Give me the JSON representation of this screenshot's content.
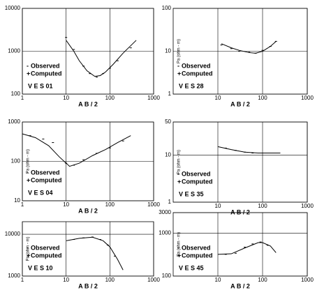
{
  "chart_data": [
    {
      "type": "line",
      "label": "V E S 01",
      "xlabel": "A B / 2",
      "log_x": true,
      "log_y": true,
      "grid": true,
      "legend": "lower left",
      "xlim": [
        1,
        1000
      ],
      "ylim": [
        100,
        10000
      ],
      "xticks": [
        1,
        10,
        100,
        1000
      ],
      "yticks": [
        100,
        1000,
        10000
      ],
      "series": [
        {
          "name": "Observed",
          "color": "#000000",
          "x": [
            10,
            15,
            25,
            35,
            50,
            70,
            100,
            150,
            300
          ],
          "values": [
            2100,
            1100,
            450,
            300,
            250,
            300,
            400,
            600,
            1200
          ]
        },
        {
          "name": "Computed",
          "color": "#000000",
          "x": [
            10,
            15,
            20,
            30,
            45,
            60,
            80,
            120,
            200,
            400
          ],
          "values": [
            1800,
            1000,
            600,
            350,
            260,
            270,
            330,
            500,
            900,
            1800
          ]
        }
      ]
    },
    {
      "type": "line",
      "label": "V E S 28",
      "xlabel": "A B / 2",
      "ylabel": "Pa (ohm - m)",
      "log_x": true,
      "log_y": true,
      "grid": true,
      "legend": "lower left",
      "xlim": [
        1,
        1000
      ],
      "ylim": [
        1,
        100
      ],
      "xticks": [
        10,
        100,
        1000
      ],
      "yticks": [
        1,
        10,
        100
      ],
      "series": [
        {
          "name": "Observed",
          "color": "#000000",
          "x": [
            12,
            20,
            30,
            50,
            70,
            100,
            150,
            200
          ],
          "values": [
            14,
            11.5,
            10,
            9.5,
            9,
            10.5,
            13,
            17
          ]
        },
        {
          "name": "Computed",
          "color": "#000000",
          "x": [
            12,
            20,
            30,
            50,
            70,
            100,
            150,
            200
          ],
          "values": [
            15,
            12,
            10.5,
            9.3,
            9,
            10,
            13,
            17
          ]
        }
      ]
    },
    {
      "type": "line",
      "label": "V E S 04",
      "xlabel": "A B / 2",
      "ylabel": "Pa (ohm - m)",
      "log_x": true,
      "log_y": true,
      "grid": true,
      "legend": "lower left",
      "xlim": [
        1,
        1000
      ],
      "ylim": [
        10,
        1000
      ],
      "xticks": [
        1,
        10,
        100,
        1000
      ],
      "yticks": [
        10,
        100,
        1000
      ],
      "series": [
        {
          "name": "Observed",
          "color": "#000000",
          "x": [
            1.5,
            3,
            5,
            10,
            15,
            25,
            50,
            100,
            200
          ],
          "values": [
            450,
            370,
            300,
            90,
            80,
            110,
            160,
            220,
            330
          ]
        },
        {
          "name": "Computed",
          "color": "#000000",
          "x": [
            1,
            2,
            4,
            7,
            12,
            20,
            40,
            80,
            150,
            300
          ],
          "values": [
            500,
            400,
            250,
            130,
            75,
            90,
            140,
            200,
            300,
            450
          ]
        }
      ]
    },
    {
      "type": "line",
      "label": "V E S 35",
      "xlabel": "A B / 2",
      "ylabel": "Pa (ohm - m)",
      "log_x": true,
      "log_y": true,
      "grid": true,
      "legend": "lower left",
      "xlim": [
        1,
        1000
      ],
      "ylim": [
        1,
        50
      ],
      "xticks": [
        10,
        100,
        1000
      ],
      "yticks": [
        1,
        10,
        50
      ],
      "series": [
        {
          "name": "Observed",
          "color": "#000000",
          "x": [
            15,
            25,
            40,
            60,
            90,
            130,
            200
          ],
          "values": [
            14,
            12.5,
            11.5,
            11,
            11,
            11,
            11
          ]
        },
        {
          "name": "Computed",
          "color": "#000000",
          "x": [
            10,
            20,
            40,
            80,
            150,
            250
          ],
          "values": [
            15,
            13,
            11.5,
            11,
            11,
            11
          ]
        }
      ]
    },
    {
      "type": "line",
      "label": "V E S 10",
      "xlabel": "A B / 2",
      "ylabel": "Pa (ohm - m)",
      "log_x": true,
      "log_y": true,
      "grid": true,
      "legend": "lower left",
      "xlim": [
        1,
        1000
      ],
      "ylim": [
        1000,
        20000
      ],
      "xticks": [
        1,
        10,
        100,
        1000
      ],
      "yticks": [
        1000,
        10000
      ],
      "series": [
        {
          "name": "Observed",
          "color": "#000000",
          "x": [
            15,
            25,
            40,
            60,
            90,
            130
          ],
          "values": [
            7500,
            8200,
            8600,
            7500,
            5500,
            3000
          ]
        },
        {
          "name": "Computed",
          "color": "#000000",
          "x": [
            10,
            20,
            40,
            70,
            100,
            150,
            200
          ],
          "values": [
            7000,
            8000,
            8500,
            7000,
            5000,
            2500,
            1400
          ]
        }
      ]
    },
    {
      "type": "line",
      "label": "V E S 45",
      "xlabel": "A B / 2",
      "ylabel": "Pa (ohm - m)",
      "log_x": true,
      "log_y": true,
      "grid": true,
      "legend": "lower left",
      "xlim": [
        1,
        1000
      ],
      "ylim": [
        100,
        3000
      ],
      "xticks": [
        10,
        100,
        1000
      ],
      "yticks": [
        100,
        1000,
        3000
      ],
      "series": [
        {
          "name": "Observed",
          "color": "#000000",
          "x": [
            15,
            25,
            40,
            60,
            90,
            130
          ],
          "values": [
            320,
            340,
            470,
            560,
            620,
            520
          ]
        },
        {
          "name": "Computed",
          "color": "#000000",
          "x": [
            10,
            20,
            40,
            80,
            100,
            150,
            200
          ],
          "values": [
            320,
            330,
            450,
            600,
            600,
            500,
            350
          ]
        }
      ]
    }
  ]
}
